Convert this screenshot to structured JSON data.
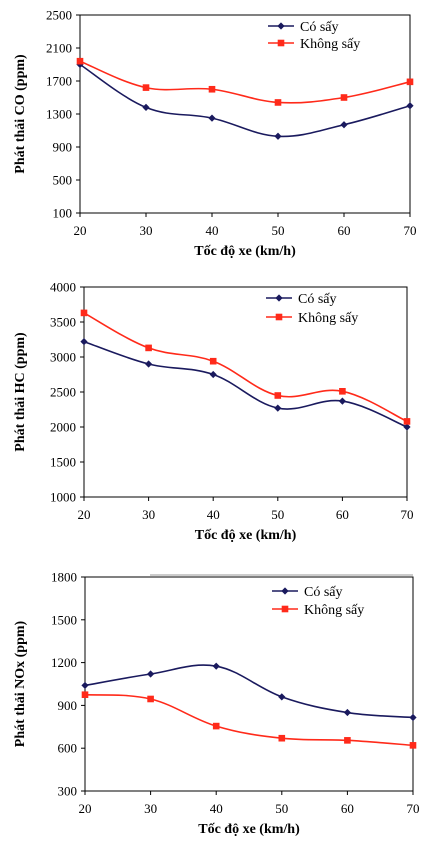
{
  "chart_data": [
    {
      "type": "line",
      "x": [
        20,
        30,
        40,
        50,
        60,
        70
      ],
      "xlabel": "Tốc độ xe (km/h)",
      "ylabel": "Phát thải CO (ppm)",
      "xlim": [
        20,
        70
      ],
      "ylim": [
        100,
        2500
      ],
      "x_ticks": [
        20,
        30,
        40,
        50,
        60,
        70
      ],
      "y_ticks": [
        100,
        500,
        900,
        1300,
        1700,
        2100,
        2500
      ],
      "grid": false,
      "legend_position": "top-right",
      "series": [
        {
          "name": "Có sấy",
          "color": "#1a1a5e",
          "marker": "diamond",
          "values": [
            1900,
            1380,
            1250,
            1030,
            1170,
            1400
          ]
        },
        {
          "name": "Không sấy",
          "color": "#ff2a1a",
          "marker": "square",
          "values": [
            1940,
            1620,
            1600,
            1440,
            1500,
            1690
          ]
        }
      ]
    },
    {
      "type": "line",
      "x": [
        20,
        30,
        40,
        50,
        60,
        70
      ],
      "xlabel": "Tốc độ xe (km/h)",
      "ylabel": "Phát thải HC (ppm)",
      "xlim": [
        20,
        70
      ],
      "ylim": [
        1000,
        4000
      ],
      "x_ticks": [
        20,
        30,
        40,
        50,
        60,
        70
      ],
      "y_ticks": [
        1000,
        1500,
        2000,
        2500,
        3000,
        3500,
        4000
      ],
      "grid": false,
      "legend_position": "top-right",
      "series": [
        {
          "name": "Có sấy",
          "color": "#1a1a5e",
          "marker": "diamond",
          "values": [
            3220,
            2900,
            2750,
            2270,
            2370,
            2000
          ]
        },
        {
          "name": "Không sấy",
          "color": "#ff2a1a",
          "marker": "square",
          "values": [
            3630,
            3130,
            2940,
            2450,
            2510,
            2080
          ]
        }
      ]
    },
    {
      "type": "line",
      "x": [
        20,
        30,
        40,
        50,
        60,
        70
      ],
      "xlabel": "Tốc độ xe (km/h)",
      "ylabel": "Phát thải NOx (ppm)",
      "xlim": [
        20,
        70
      ],
      "ylim": [
        300,
        1800
      ],
      "x_ticks": [
        20,
        30,
        40,
        50,
        60,
        70
      ],
      "y_ticks": [
        300,
        600,
        900,
        1200,
        1500,
        1800
      ],
      "grid": false,
      "legend_position": "top-right",
      "series": [
        {
          "name": "Có sấy",
          "color": "#1a1a5e",
          "marker": "diamond",
          "values": [
            1040,
            1120,
            1175,
            960,
            850,
            815
          ]
        },
        {
          "name": "Không sấy",
          "color": "#ff2a1a",
          "marker": "square",
          "values": [
            975,
            945,
            755,
            670,
            655,
            620
          ]
        }
      ]
    }
  ]
}
